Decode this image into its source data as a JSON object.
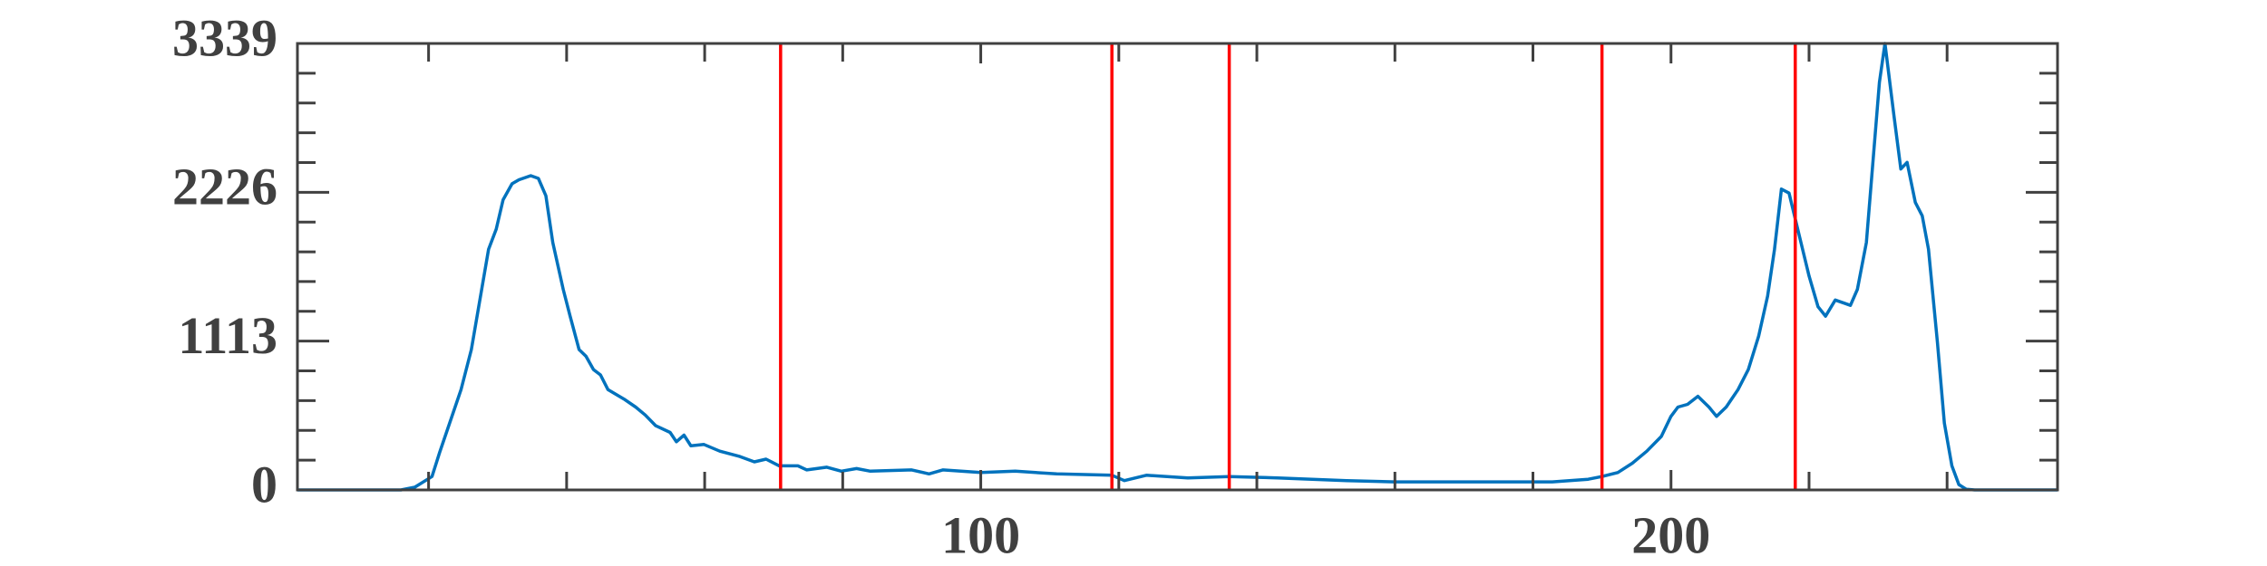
{
  "chart_data": {
    "type": "line",
    "x": [
      1,
      16,
      18,
      20.5,
      21.6,
      24.7,
      26.2,
      28.7,
      29.8,
      30.8,
      32.1,
      33.1,
      34.8,
      35.9,
      37,
      38,
      39.5,
      40.5,
      41.8,
      42.8,
      43.9,
      44.9,
      46,
      48.3,
      50,
      51.4,
      52.9,
      55,
      55.9,
      57,
      58,
      59.9,
      62.2,
      65.1,
      67.2,
      68.9,
      70.8,
      73.5,
      74.8,
      77.7,
      79.8,
      82,
      84,
      90,
      92.5,
      94.5,
      100,
      105,
      111,
      119,
      120.8,
      124,
      130,
      136,
      143,
      153,
      160,
      168,
      176.5,
      182.8,
      188,
      190,
      192.3,
      194.4,
      196.5,
      198.6,
      200,
      201,
      202.4,
      203.9,
      205.5,
      206.6,
      208,
      209.7,
      211.2,
      212.7,
      214,
      215,
      216,
      217.1,
      218.6,
      220,
      221.3,
      222.4,
      223.8,
      226,
      227,
      228.3,
      230.2,
      231,
      232.3,
      233.3,
      234.2,
      235.4,
      236.4,
      237.3,
      238.6,
      239.6,
      240.7,
      241.7,
      242.8,
      244,
      256
    ],
    "values": [
      0,
      0,
      20,
      100,
      280,
      750,
      1050,
      1800,
      1950,
      2170,
      2290,
      2320,
      2350,
      2330,
      2200,
      1850,
      1500,
      1300,
      1050,
      1000,
      900,
      860,
      750,
      680,
      620,
      560,
      480,
      430,
      360,
      410,
      330,
      340,
      290,
      250,
      210,
      230,
      180,
      180,
      150,
      170,
      140,
      160,
      140,
      150,
      120,
      150,
      130,
      140,
      120,
      110,
      70,
      110,
      90,
      100,
      90,
      70,
      60,
      60,
      60,
      60,
      80,
      100,
      130,
      200,
      290,
      400,
      550,
      620,
      640,
      700,
      620,
      550,
      620,
      750,
      900,
      1150,
      1450,
      1800,
      2250,
      2220,
      1900,
      1600,
      1370,
      1300,
      1420,
      1380,
      1500,
      1850,
      3050,
      3339,
      2800,
      2400,
      2450,
      2150,
      2050,
      1800,
      1100,
      500,
      180,
      40,
      5,
      0,
      0
    ],
    "color": "#0072bd",
    "xlim": [
      1,
      256
    ],
    "xticks": [
      100,
      200
    ],
    "xminorticks": [
      20,
      40,
      60,
      80,
      120,
      140,
      160,
      180,
      220,
      240
    ],
    "ylim": [
      0,
      3339
    ],
    "yticks": [
      0,
      1113,
      2226,
      3339
    ],
    "yminorticks": [
      222.6,
      445.2,
      667.8,
      890.4,
      1335.6,
      1558.2,
      1780.8,
      2003.4,
      2448.6,
      2671.2,
      2893.8,
      3116.4
    ],
    "vlines": {
      "x": [
        71,
        119,
        136,
        190,
        218
      ],
      "color": "#ff0000"
    }
  }
}
